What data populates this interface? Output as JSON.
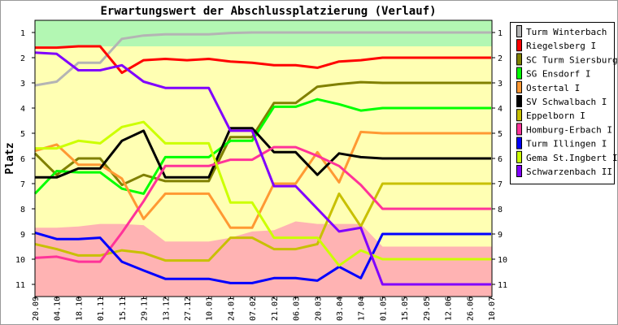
{
  "chart_data": {
    "type": "line",
    "title": "Erwartungswert der Abschlussplatzierung (Verlauf)",
    "ylabel": "Platz",
    "xlabel": "",
    "ylim": [
      1,
      11
    ],
    "y_inverted": true,
    "yticks": [
      1,
      2,
      3,
      4,
      5,
      6,
      7,
      8,
      9,
      10,
      11
    ],
    "legend_position": "right",
    "categories": [
      "20.09",
      "04.10",
      "18.10",
      "01.11",
      "15.11",
      "29.11",
      "13.12",
      "27.12",
      "10.01",
      "24.01",
      "07.02",
      "21.02",
      "06.03",
      "20.03",
      "03.04",
      "17.04",
      "01.05",
      "15.05",
      "29.05",
      "12.06",
      "26.06",
      "10.07"
    ],
    "zones": {
      "promotion_upper_bound": 1.55,
      "promotion_color": "#b3f7b3",
      "middle_color": "#ffffb3",
      "relegation_color": "#ffb3b3",
      "relegation_boundary": [
        8.75,
        8.75,
        8.7,
        8.6,
        8.6,
        8.65,
        9.3,
        9.3,
        9.3,
        9.15,
        8.9,
        8.85,
        8.5,
        8.6,
        8.6,
        8.6,
        9.5,
        9.5,
        9.5,
        9.5,
        9.5,
        9.5
      ]
    },
    "series": [
      {
        "name": "Turm Winterbach",
        "color": "#b4b4b4",
        "values": [
          3.1,
          2.95,
          2.2,
          2.2,
          1.25,
          1.12,
          1.07,
          1.07,
          1.07,
          1.02,
          1,
          1,
          1,
          1,
          1,
          1,
          1,
          1,
          1,
          1,
          1,
          1
        ]
      },
      {
        "name": "Riegelsberg I",
        "color": "#ff0000",
        "values": [
          1.6,
          1.6,
          1.55,
          1.55,
          2.6,
          2.1,
          2.05,
          2.1,
          2.05,
          2.15,
          2.2,
          2.3,
          2.3,
          2.4,
          2.15,
          2.1,
          2,
          2,
          2,
          2,
          2,
          2
        ]
      },
      {
        "name": "SC Turm Siersburg",
        "color": "#808000",
        "values": [
          5.8,
          6.65,
          6,
          6,
          7.05,
          6.65,
          6.9,
          6.9,
          6.9,
          5.15,
          5.15,
          3.8,
          3.8,
          3.15,
          3.05,
          2.97,
          3,
          3,
          3,
          3,
          3,
          3
        ]
      },
      {
        "name": "SG Ensdorf I",
        "color": "#00ff00",
        "values": [
          7.4,
          6.5,
          6.55,
          6.55,
          7.2,
          7.4,
          5.95,
          5.95,
          5.95,
          5.3,
          5.3,
          3.95,
          3.95,
          3.65,
          3.85,
          4.1,
          4,
          4,
          4,
          4,
          4,
          4
        ]
      },
      {
        "name": "Ostertal I",
        "color": "#ff9933",
        "values": [
          5.7,
          5.45,
          6.25,
          6.25,
          6.8,
          8.4,
          7.4,
          7.4,
          7.4,
          8.75,
          8.75,
          7,
          7,
          5.75,
          6.95,
          4.95,
          5,
          5,
          5,
          5,
          5,
          5
        ]
      },
      {
        "name": "SV Schwalbach I",
        "color": "#000000",
        "values": [
          6.75,
          6.75,
          6.4,
          6.4,
          5.3,
          4.9,
          6.75,
          6.75,
          6.75,
          4.8,
          4.8,
          5.75,
          5.75,
          6.65,
          5.8,
          5.95,
          6,
          6,
          6,
          6,
          6,
          6
        ]
      },
      {
        "name": "Eppelborn I",
        "color": "#c8c000",
        "values": [
          9.4,
          9.6,
          9.85,
          9.85,
          9.65,
          9.75,
          10.05,
          10.05,
          10.05,
          9.15,
          9.15,
          9.6,
          9.6,
          9.4,
          7.4,
          8.7,
          7,
          7,
          7,
          7,
          7,
          7
        ]
      },
      {
        "name": "Homburg-Erbach I",
        "color": "#ff3399",
        "values": [
          9.95,
          9.9,
          10.1,
          10.1,
          8.95,
          7.7,
          6.3,
          6.3,
          6.3,
          6.05,
          6.05,
          5.55,
          5.55,
          5.9,
          6.3,
          7.05,
          8,
          8,
          8,
          8,
          8,
          8
        ]
      },
      {
        "name": "Turm Illingen I",
        "color": "#0000ff",
        "values": [
          8.95,
          9.2,
          9.2,
          9.15,
          10.1,
          10.45,
          10.78,
          10.78,
          10.78,
          10.95,
          10.95,
          10.75,
          10.75,
          10.85,
          10.3,
          10.75,
          9,
          9,
          9,
          9,
          9,
          9
        ]
      },
      {
        "name": "Gema St.Ingbert I",
        "color": "#ccff00",
        "values": [
          5.6,
          5.6,
          5.3,
          5.4,
          4.75,
          4.55,
          5.4,
          5.4,
          5.4,
          7.75,
          7.75,
          9.15,
          9.15,
          9.15,
          10.25,
          9.65,
          10,
          10,
          10,
          10,
          10,
          10
        ]
      },
      {
        "name": "Schwarzenbach II",
        "color": "#8000ff",
        "values": [
          1.8,
          1.85,
          2.5,
          2.5,
          2.3,
          2.95,
          3.2,
          3.2,
          3.2,
          4.9,
          4.9,
          7.1,
          7.1,
          8,
          8.9,
          8.75,
          11,
          11,
          11,
          11,
          11,
          11
        ]
      }
    ]
  }
}
